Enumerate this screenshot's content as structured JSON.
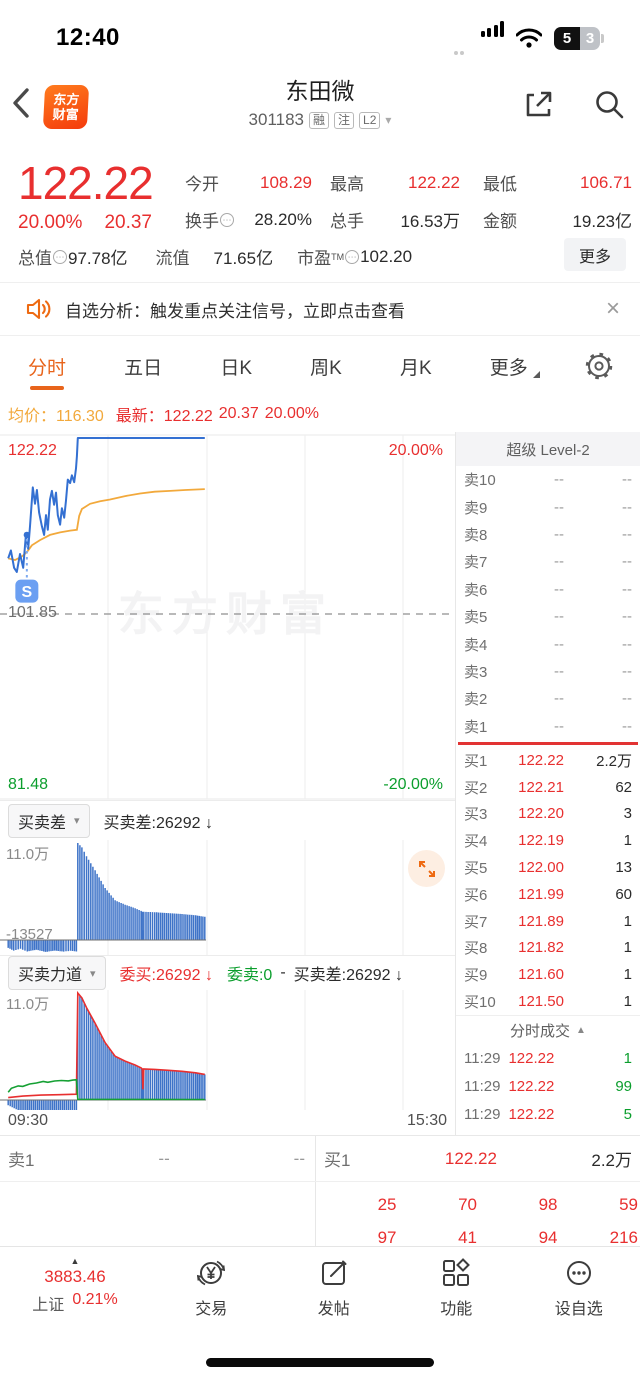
{
  "status_bar": {
    "time": "12:40",
    "battery_left": "5",
    "battery_right": "3"
  },
  "header": {
    "logo_line1": "东方",
    "logo_line2": "财富",
    "title": "东田微",
    "code": "301183",
    "badges": {
      "b1": "融",
      "b2": "注",
      "b3": "L2"
    }
  },
  "quote": {
    "price": "122.22",
    "change_pct": "20.00%",
    "change_amt": "20.37",
    "stats": [
      {
        "label": "今开",
        "value": "108.29"
      },
      {
        "label": "最高",
        "value": "122.22"
      },
      {
        "label": "最低",
        "value": "106.71"
      },
      {
        "label": "换手",
        "value": "28.20%"
      },
      {
        "label": "总手",
        "value": "16.53万"
      },
      {
        "label": "金额",
        "value": "19.23亿"
      },
      {
        "label": "总值",
        "value": "97.78亿"
      },
      {
        "label": "流值",
        "value": "71.65亿"
      },
      {
        "label": "市盈",
        "value": "102.20"
      }
    ],
    "tm_superscript": "TM",
    "more_label": "更多"
  },
  "notice": {
    "text": "自选分析：触发重点关注信号，立即点击查看"
  },
  "tabs": {
    "items": [
      "分时",
      "五日",
      "日K",
      "周K",
      "月K"
    ],
    "more": "更多",
    "active_index": 0
  },
  "chart_header": {
    "avg_label": "均价：",
    "avg_value": "116.30",
    "latest_label": "最新：",
    "latest_price": "122.22",
    "latest_change": "20.37",
    "latest_pct": "20.00%"
  },
  "main_chart": {
    "y_top": "122.22",
    "y_mid": "101.85",
    "y_bottom": "81.48",
    "pct_top": "20.00%",
    "pct_bottom": "-20.00%",
    "watermark": "东方财富",
    "signal_label": "S"
  },
  "level2": {
    "title": "超级 Level-2",
    "sells": [
      {
        "label": "卖10",
        "price": "--",
        "qty": "--"
      },
      {
        "label": "卖9",
        "price": "--",
        "qty": "--"
      },
      {
        "label": "卖8",
        "price": "--",
        "qty": "--"
      },
      {
        "label": "卖7",
        "price": "--",
        "qty": "--"
      },
      {
        "label": "卖6",
        "price": "--",
        "qty": "--"
      },
      {
        "label": "卖5",
        "price": "--",
        "qty": "--"
      },
      {
        "label": "卖4",
        "price": "--",
        "qty": "--"
      },
      {
        "label": "卖3",
        "price": "--",
        "qty": "--"
      },
      {
        "label": "卖2",
        "price": "--",
        "qty": "--"
      },
      {
        "label": "卖1",
        "price": "--",
        "qty": "--"
      }
    ],
    "buys": [
      {
        "label": "买1",
        "price": "122.22",
        "qty": "2.2万"
      },
      {
        "label": "买2",
        "price": "122.21",
        "qty": "62"
      },
      {
        "label": "买3",
        "price": "122.20",
        "qty": "3"
      },
      {
        "label": "买4",
        "price": "122.19",
        "qty": "1"
      },
      {
        "label": "买5",
        "price": "122.00",
        "qty": "13"
      },
      {
        "label": "买6",
        "price": "121.99",
        "qty": "60"
      },
      {
        "label": "买7",
        "price": "121.89",
        "qty": "1"
      },
      {
        "label": "买8",
        "price": "121.82",
        "qty": "1"
      },
      {
        "label": "买9",
        "price": "121.60",
        "qty": "1"
      },
      {
        "label": "买10",
        "price": "121.50",
        "qty": "1"
      }
    ]
  },
  "ticks": {
    "title": "分时成交",
    "rows": [
      {
        "time": "11:29",
        "price": "122.22",
        "qty": "1"
      },
      {
        "time": "11:29",
        "price": "122.22",
        "qty": "99"
      },
      {
        "time": "11:29",
        "price": "122.22",
        "qty": "5"
      }
    ]
  },
  "sub1": {
    "selector": "买卖差",
    "info": "买卖差:26292",
    "scale": "11.0万",
    "min_label": "-13527"
  },
  "sub2": {
    "selector": "买卖力道",
    "buy": "委买:26292",
    "sell": "委卖:0",
    "dash": "-",
    "diff": "买卖差:26292",
    "scale": "11.0万"
  },
  "time_axis": {
    "start": "09:30",
    "end": "15:30"
  },
  "bottom_quote": {
    "sell_label": "卖1",
    "sell_price": "--",
    "sell_qty": "--",
    "buy_label": "买1",
    "buy_price": "122.22",
    "buy_qty": "2.2万",
    "num_rows": [
      [
        "25",
        "70",
        "98",
        "59"
      ],
      [
        "97",
        "41",
        "94",
        "216"
      ]
    ]
  },
  "nav": {
    "index_value": "3883.46",
    "index_name": "上证",
    "index_pct": "0.21%",
    "items": [
      "交易",
      "发帖",
      "功能",
      "设自选"
    ]
  },
  "icons": {
    "arrow_down": "↓",
    "sort_up": "▲",
    "caret_down": "▾",
    "close": "×",
    "ellipsis": "⋯",
    "up_tri": "▲"
  },
  "colors": {
    "red": "#e82f2f",
    "green": "#0b9e2d",
    "orange": "#e8641b",
    "avg_orange": "#f2a93c",
    "line_blue": "#3470d2",
    "bar_blue": "#3e73c8"
  },
  "chart_data": {
    "type": "line",
    "title": "分时 intraday",
    "x_range": [
      "09:30",
      "15:30"
    ],
    "main": {
      "ylim": [
        81.48,
        122.22
      ],
      "mid": 101.85,
      "pct_range": [
        -20,
        20
      ],
      "price": [
        [
          0.018,
          108.3
        ],
        [
          0.024,
          109.2
        ],
        [
          0.031,
          107.2
        ],
        [
          0.037,
          106.71
        ],
        [
          0.044,
          108.8
        ],
        [
          0.051,
          107.2
        ],
        [
          0.057,
          111.0
        ],
        [
          0.062,
          109.4
        ],
        [
          0.066,
          112.0
        ],
        [
          0.072,
          116.5
        ],
        [
          0.077,
          114.6
        ],
        [
          0.081,
          116.2
        ],
        [
          0.086,
          113.6
        ],
        [
          0.092,
          112.0
        ],
        [
          0.097,
          111.0
        ],
        [
          0.101,
          113.3
        ],
        [
          0.105,
          111.6
        ],
        [
          0.11,
          115.1
        ],
        [
          0.114,
          116.1
        ],
        [
          0.119,
          114.5
        ],
        [
          0.123,
          115.9
        ],
        [
          0.127,
          113.3
        ],
        [
          0.132,
          112.2
        ],
        [
          0.136,
          114.1
        ],
        [
          0.141,
          113.0
        ],
        [
          0.145,
          115.0
        ],
        [
          0.149,
          117.4
        ],
        [
          0.154,
          117.0
        ],
        [
          0.158,
          117.9
        ],
        [
          0.163,
          117.1
        ],
        [
          0.167,
          118.7
        ],
        [
          0.169,
          120.1
        ],
        [
          0.171,
          122.22
        ],
        [
          0.45,
          122.22
        ]
      ],
      "avg": [
        [
          0.018,
          108.29
        ],
        [
          0.033,
          108.1
        ],
        [
          0.048,
          108.5
        ],
        [
          0.059,
          109.0
        ],
        [
          0.07,
          109.8
        ],
        [
          0.088,
          110.4
        ],
        [
          0.11,
          111.0
        ],
        [
          0.132,
          111.3
        ],
        [
          0.154,
          111.5
        ],
        [
          0.169,
          111.6
        ],
        [
          0.174,
          113.2
        ],
        [
          0.18,
          114.0
        ],
        [
          0.198,
          114.6
        ],
        [
          0.22,
          114.9
        ],
        [
          0.242,
          115.1
        ],
        [
          0.275,
          115.5
        ],
        [
          0.308,
          115.8
        ],
        [
          0.34,
          116.0
        ],
        [
          0.374,
          116.1
        ],
        [
          0.407,
          116.2
        ],
        [
          0.45,
          116.3
        ]
      ],
      "signal": {
        "x": 0.059,
        "price": 111.0,
        "badge_price": 104.5
      }
    },
    "volume_diff": {
      "scale_max": 110000,
      "min": -13527,
      "end_value": 26292,
      "bars": [
        [
          0.018,
          -9000
        ],
        [
          0.03,
          -12000
        ],
        [
          0.045,
          -10000
        ],
        [
          0.06,
          -13000
        ],
        [
          0.08,
          -11000
        ],
        [
          0.1,
          -13527
        ],
        [
          0.12,
          -12000
        ],
        [
          0.14,
          -13200
        ],
        [
          0.155,
          -12200
        ],
        [
          0.168,
          -13000
        ],
        [
          0.171,
          110000
        ],
        [
          0.18,
          105000
        ],
        [
          0.19,
          95000
        ],
        [
          0.209,
          79000
        ],
        [
          0.231,
          59000
        ],
        [
          0.253,
          45000
        ],
        [
          0.275,
          40000
        ],
        [
          0.297,
          36000
        ],
        [
          0.31,
          33000
        ],
        [
          0.3125,
          32000
        ],
        [
          0.314,
          11000
        ],
        [
          0.316,
          32000
        ],
        [
          0.34,
          31500
        ],
        [
          0.37,
          30500
        ],
        [
          0.4,
          29500
        ],
        [
          0.43,
          28000
        ],
        [
          0.45,
          26292
        ]
      ]
    },
    "force": {
      "scale_max": 110000,
      "buy_end": 26292,
      "sell_end": 0,
      "buy_line": [
        [
          0.018,
          2500
        ],
        [
          0.05,
          4000
        ],
        [
          0.09,
          5000
        ],
        [
          0.13,
          5500
        ],
        [
          0.168,
          6000
        ],
        [
          0.171,
          110000
        ],
        [
          0.18,
          105000
        ],
        [
          0.19,
          95000
        ],
        [
          0.209,
          79000
        ],
        [
          0.231,
          59000
        ],
        [
          0.253,
          45000
        ],
        [
          0.275,
          40000
        ],
        [
          0.297,
          36000
        ],
        [
          0.31,
          33000
        ],
        [
          0.3125,
          32000
        ],
        [
          0.314,
          11000
        ],
        [
          0.316,
          32000
        ],
        [
          0.34,
          31500
        ],
        [
          0.37,
          30500
        ],
        [
          0.4,
          29500
        ],
        [
          0.43,
          28000
        ],
        [
          0.45,
          26292
        ]
      ],
      "sell_line": [
        [
          0.018,
          8000
        ],
        [
          0.025,
          12000
        ],
        [
          0.04,
          14500
        ],
        [
          0.05,
          14000
        ],
        [
          0.065,
          16500
        ],
        [
          0.08,
          17500
        ],
        [
          0.095,
          19000
        ],
        [
          0.105,
          18200
        ],
        [
          0.12,
          19500
        ],
        [
          0.135,
          20000
        ],
        [
          0.15,
          19600
        ],
        [
          0.16,
          20500
        ],
        [
          0.168,
          20800
        ],
        [
          0.171,
          700
        ],
        [
          0.45,
          500
        ]
      ],
      "diff_bars": [
        [
          0.018,
          -5500
        ],
        [
          0.04,
          -10500
        ],
        [
          0.065,
          -12000
        ],
        [
          0.095,
          -14000
        ],
        [
          0.12,
          -14000
        ],
        [
          0.15,
          -14100
        ],
        [
          0.168,
          -14800
        ],
        [
          0.171,
          110000
        ],
        [
          0.18,
          105000
        ],
        [
          0.19,
          95000
        ],
        [
          0.209,
          79000
        ],
        [
          0.231,
          59000
        ],
        [
          0.253,
          45000
        ],
        [
          0.275,
          40000
        ],
        [
          0.297,
          36000
        ],
        [
          0.31,
          33000
        ],
        [
          0.3125,
          32000
        ],
        [
          0.314,
          11000
        ],
        [
          0.316,
          32000
        ],
        [
          0.34,
          31500
        ],
        [
          0.37,
          30500
        ],
        [
          0.4,
          29500
        ],
        [
          0.43,
          28000
        ],
        [
          0.45,
          26292
        ]
      ]
    }
  }
}
